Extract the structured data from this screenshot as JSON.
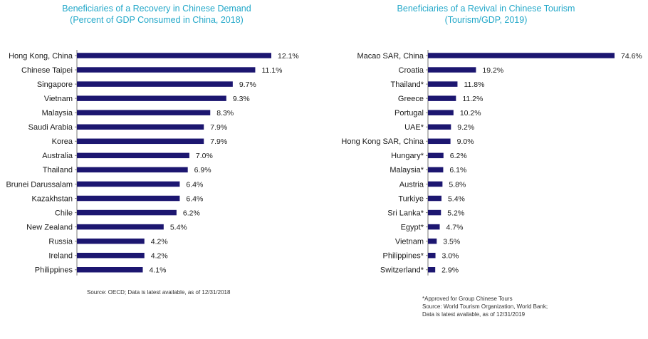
{
  "chart_data": [
    {
      "type": "bar",
      "orientation": "horizontal",
      "title": "Beneficiaries of a Recovery in Chinese Demand",
      "subtitle": "(Percent of GDP Consumed in China, 2018)",
      "categories": [
        "Hong Kong, China",
        "Chinese Taipei",
        "Singapore",
        "Vietnam",
        "Malaysia",
        "Saudi Arabia",
        "Korea",
        "Australia",
        "Thailand",
        "Brunei Darussalam",
        "Kazakhstan",
        "Chile",
        "New Zealand",
        "Russia",
        "Ireland",
        "Philippines"
      ],
      "values": [
        12.1,
        11.1,
        9.7,
        9.3,
        8.3,
        7.9,
        7.9,
        7.0,
        6.9,
        6.4,
        6.4,
        6.2,
        5.4,
        4.2,
        4.2,
        4.1
      ],
      "value_labels": [
        "12.1%",
        "11.1%",
        "9.7%",
        "9.3%",
        "8.3%",
        "7.9%",
        "7.9%",
        "7.0%",
        "6.9%",
        "6.4%",
        "6.4%",
        "6.2%",
        "5.4%",
        "4.2%",
        "4.2%",
        "4.1%"
      ],
      "xlim": [
        0,
        12.1
      ],
      "bar_color": "#1c1670",
      "grid": false,
      "footnotes": [
        "Source: OECD; Data is latest available, as of 12/31/2018"
      ]
    },
    {
      "type": "bar",
      "orientation": "horizontal",
      "title": "Beneficiaries of a Revival in Chinese Tourism",
      "subtitle": "(Tourism/GDP, 2019)",
      "categories": [
        "Macao SAR, China",
        "Croatia",
        "Thailand*",
        "Greece",
        "Portugal",
        "UAE*",
        "Hong Kong SAR, China",
        "Hungary*",
        "Malaysia*",
        "Austria",
        "Turkiye",
        "Sri Lanka*",
        "Egypt*",
        "Vietnam",
        "Philippines*",
        "Switzerland*"
      ],
      "values": [
        74.6,
        19.2,
        11.8,
        11.2,
        10.2,
        9.2,
        9.0,
        6.2,
        6.1,
        5.8,
        5.4,
        5.2,
        4.7,
        3.5,
        3.0,
        2.9
      ],
      "value_labels": [
        "74.6%",
        "19.2%",
        "11.8%",
        "11.2%",
        "10.2%",
        "9.2%",
        "9.0%",
        "6.2%",
        "6.1%",
        "5.8%",
        "5.4%",
        "5.2%",
        "4.7%",
        "3.5%",
        "3.0%",
        "2.9%"
      ],
      "xlim": [
        0,
        74.6
      ],
      "bar_color": "#1c1670",
      "grid": false,
      "footnotes": [
        "*Approved for Group Chinese Tours",
        "Source: World Tourism Organization, World Bank;",
        "Data is latest available, as of 12/31/2019"
      ]
    }
  ]
}
